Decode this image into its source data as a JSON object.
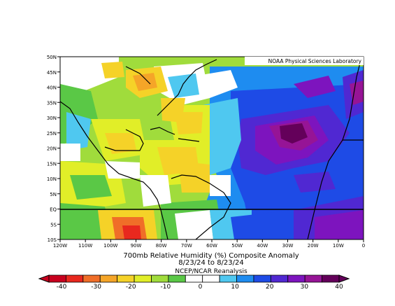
{
  "credit": "NOAA Physical Sciences Laboratory",
  "title_line1": "700mb Relative Humidity (%) Composite Anomaly",
  "title_line2": "8/23/24  to 8/23/24",
  "source": "NCEP/NCAR Reanalysis",
  "equator_label": "EQ",
  "lat_labels": [
    "50N",
    "45N",
    "40N",
    "35N",
    "30N",
    "25N",
    "20N",
    "15N",
    "10N",
    "5N",
    "EQ",
    "5S",
    "10S"
  ],
  "lon_labels": [
    "120W",
    "110W",
    "100W",
    "90W",
    "80W",
    "70W",
    "60W",
    "50W",
    "40W",
    "30W",
    "20W",
    "10W",
    "0"
  ],
  "colorbar": {
    "ticks": [
      "-40",
      "-30",
      "-20",
      "-10",
      "0",
      "10",
      "20",
      "30",
      "40"
    ],
    "colors": [
      "#c8001e",
      "#e8281e",
      "#f06e28",
      "#f5a528",
      "#f5d228",
      "#e1ee28",
      "#a0dc3c",
      "#5ac846",
      "#ffffff",
      "#ffffff",
      "#4fc8f0",
      "#1e8cf0",
      "#1e4be6",
      "#5028d2",
      "#7d14be",
      "#961496",
      "#64005a"
    ]
  },
  "chart_data": {
    "type": "heatmap",
    "variable": "700mb Relative Humidity (%) Composite Anomaly",
    "dates": "8/23/24 to 8/23/24",
    "lon_range": [
      "120W",
      "0"
    ],
    "lat_range": [
      "10S",
      "50N"
    ],
    "color_range": [
      -40,
      40
    ]
  }
}
